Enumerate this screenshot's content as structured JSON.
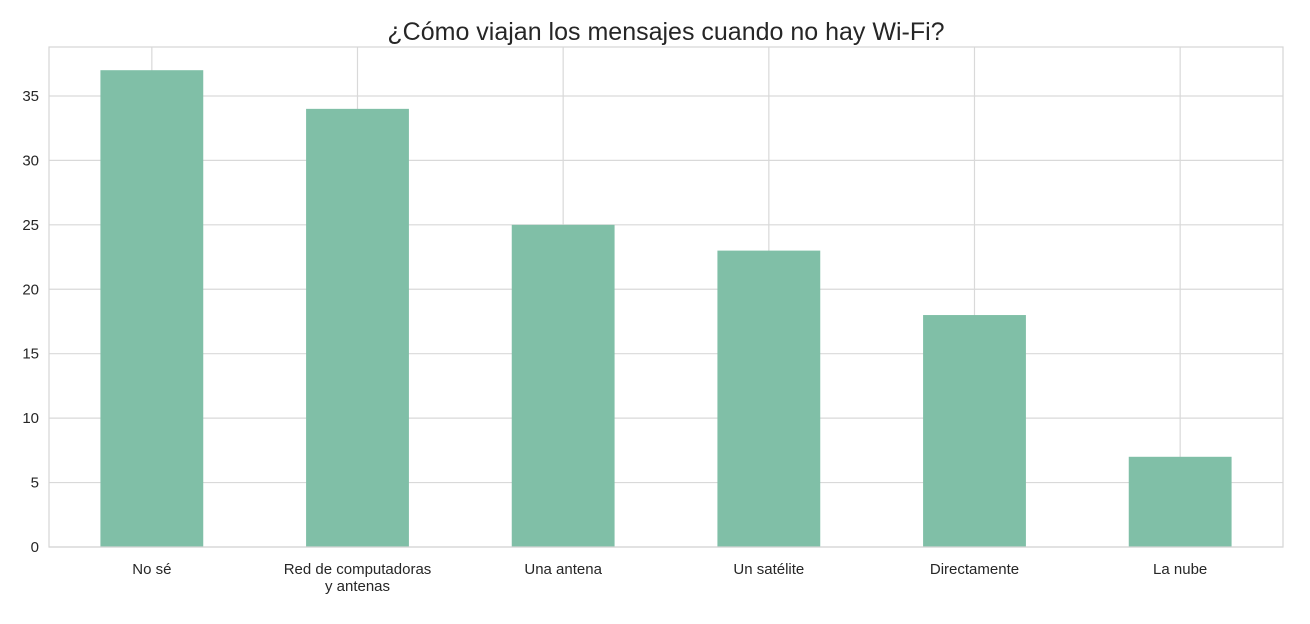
{
  "chart_data": {
    "type": "bar",
    "title": "¿Cómo viajan los mensajes cuando no hay Wi-Fi?",
    "xlabel": "",
    "ylabel": "",
    "categories": [
      "No sé",
      "Red de computadoras\ny antenas",
      "Una antena",
      "Un satélite",
      "Directamente",
      "La nube"
    ],
    "values": [
      37,
      34,
      25,
      23,
      18,
      7
    ],
    "ylim": [
      0,
      38.8
    ],
    "yticks": [
      0,
      5,
      10,
      15,
      20,
      25,
      30,
      35
    ],
    "grid": true,
    "bar_color": "#80bfa7",
    "grid_color": "#d9d9d9",
    "legend": "none"
  }
}
